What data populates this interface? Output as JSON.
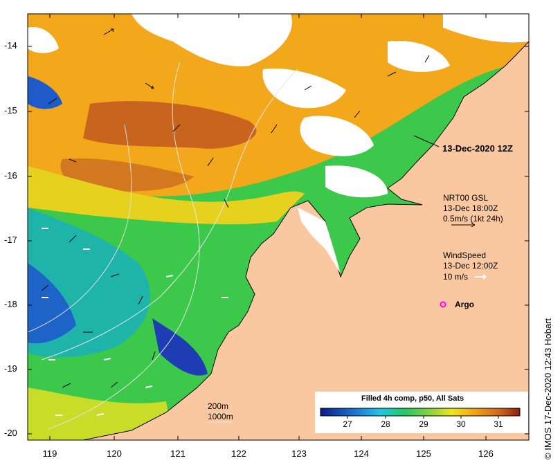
{
  "map": {
    "title": "13-Dec-2020 12Z",
    "lat_ticks": [
      "-14",
      "-15",
      "-16",
      "-17",
      "-18",
      "-19",
      "-20"
    ],
    "lon_ticks": [
      "119",
      "120",
      "121",
      "122",
      "123",
      "124",
      "125",
      "126"
    ],
    "contour_labels": [
      "200m",
      "1000m"
    ],
    "colors": {
      "land": "#fac8a0",
      "cloud": "#ffffff",
      "coast": "#000000"
    }
  },
  "legend": {
    "current": {
      "title": "NRT00 GSL",
      "time": "13-Dec 18:00Z",
      "scale": "0.5m/s (1kt 24h)"
    },
    "wind": {
      "title": "WindSpeed",
      "time": "13-Dec 12:00Z",
      "scale": "10 m/s"
    },
    "argo": {
      "label": "Argo",
      "color": "#ff00ff"
    }
  },
  "colorbar": {
    "title": "Filled 4h comp, p50, All Sats",
    "ticks": [
      "27",
      "28",
      "29",
      "30",
      "31"
    ]
  },
  "credit": "IMOS 17-Dec-2020 12:43 Hobart",
  "credit_symbol": "©"
}
